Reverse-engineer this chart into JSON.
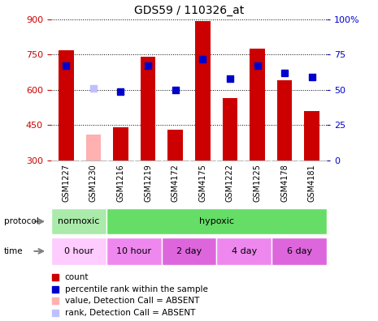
{
  "title": "GDS59 / 110326_at",
  "samples": [
    "GSM1227",
    "GSM1230",
    "GSM1216",
    "GSM1219",
    "GSM4172",
    "GSM4175",
    "GSM1222",
    "GSM1225",
    "GSM4178",
    "GSM4181"
  ],
  "counts": [
    770,
    410,
    440,
    740,
    430,
    893,
    565,
    775,
    640,
    510
  ],
  "ranks": [
    67,
    51,
    49,
    67,
    50,
    72,
    58,
    67,
    62,
    59
  ],
  "absent_indices": [
    1
  ],
  "count_color_normal": "#cc0000",
  "count_color_absent": "#ffb0b0",
  "rank_color_normal": "#0000cc",
  "rank_color_absent": "#c0c0ff",
  "ylim_left": [
    300,
    900
  ],
  "ylim_right": [
    0,
    100
  ],
  "yticks_left": [
    300,
    450,
    600,
    750,
    900
  ],
  "yticks_right": [
    0,
    25,
    50,
    75,
    100
  ],
  "protocol_labels": [
    {
      "label": "normoxic",
      "start": 0,
      "end": 2,
      "color": "#aaeaaa"
    },
    {
      "label": "hypoxic",
      "start": 2,
      "end": 10,
      "color": "#66dd66"
    }
  ],
  "time_labels": [
    {
      "label": "0 hour",
      "start": 0,
      "end": 2,
      "color": "#ffccff"
    },
    {
      "label": "10 hour",
      "start": 2,
      "end": 4,
      "color": "#ee88ee"
    },
    {
      "label": "2 day",
      "start": 4,
      "end": 6,
      "color": "#dd66dd"
    },
    {
      "label": "4 day",
      "start": 6,
      "end": 8,
      "color": "#ee88ee"
    },
    {
      "label": "6 day",
      "start": 8,
      "end": 10,
      "color": "#dd66dd"
    }
  ],
  "bar_width": 0.55,
  "background_color": "#ffffff",
  "sample_label_bg": "#dddddd",
  "left_axis_color": "#cc0000",
  "right_axis_color": "#0000cc",
  "legend_items": [
    {
      "color": "#cc0000",
      "marker": "s",
      "label": "count"
    },
    {
      "color": "#0000cc",
      "marker": "s",
      "label": "percentile rank within the sample"
    },
    {
      "color": "#ffb0b0",
      "marker": "s",
      "label": "value, Detection Call = ABSENT"
    },
    {
      "color": "#c0c0ff",
      "marker": "s",
      "label": "rank, Detection Call = ABSENT"
    }
  ]
}
